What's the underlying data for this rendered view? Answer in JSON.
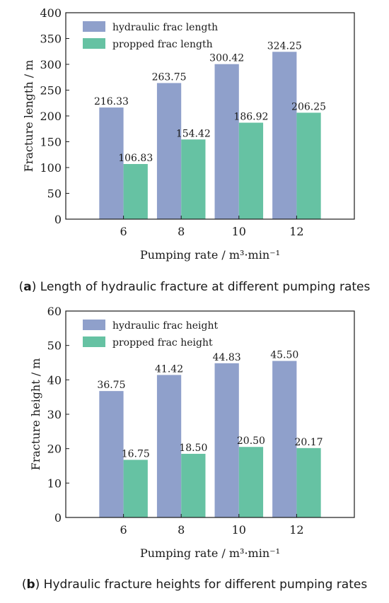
{
  "chart_data": [
    {
      "type": "bar",
      "panel_letter": "a",
      "caption": "Length of hydraulic fracture at different pumping rates",
      "categories": [
        "6",
        "8",
        "10",
        "12"
      ],
      "series": [
        {
          "name": "hydraulic frac length",
          "values": [
            216.33,
            263.75,
            300.42,
            324.25
          ],
          "labels": [
            "216.33",
            "263.75",
            "300.42",
            "324.25"
          ],
          "color": "#8fa0cb"
        },
        {
          "name": "propped frac length",
          "values": [
            106.83,
            154.42,
            186.92,
            206.25
          ],
          "labels": [
            "106.83",
            "154.42",
            "186.92",
            "206.25"
          ],
          "color": "#66c2a3"
        }
      ],
      "xlabel": "Pumping rate / m³·min⁻¹",
      "ylabel": "Fracture length / m",
      "ylim": [
        0,
        400
      ],
      "yticks": [
        0,
        50,
        100,
        150,
        200,
        250,
        300,
        350,
        400
      ],
      "grid": false,
      "legend": "top-left"
    },
    {
      "type": "bar",
      "panel_letter": "b",
      "caption": "Hydraulic fracture heights for different pumping rates",
      "categories": [
        "6",
        "8",
        "10",
        "12"
      ],
      "series": [
        {
          "name": "hydraulic frac height",
          "values": [
            36.75,
            41.42,
            44.83,
            45.5
          ],
          "labels": [
            "36.75",
            "41.42",
            "44.83",
            "45.50"
          ],
          "color": "#8fa0cb"
        },
        {
          "name": "propped frac height",
          "values": [
            16.75,
            18.5,
            20.5,
            20.17
          ],
          "labels": [
            "16.75",
            "18.50",
            "20.50",
            "20.17"
          ],
          "color": "#66c2a3"
        }
      ],
      "xlabel": "Pumping rate / m³·min⁻¹",
      "ylabel": "Fracture height / m",
      "ylim": [
        0,
        60
      ],
      "yticks": [
        0,
        10,
        20,
        30,
        40,
        50,
        60
      ],
      "grid": false,
      "legend": "top-left"
    }
  ]
}
